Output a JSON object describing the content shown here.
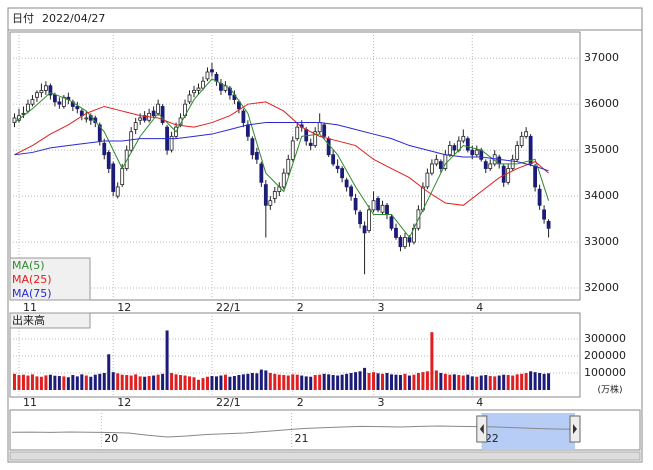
{
  "chart_data": {
    "type": "candlestick",
    "header": {
      "label": "日付",
      "date": "2022/04/27"
    },
    "xlim": [
      -1,
      126
    ],
    "ylim": [
      31740,
      37570
    ],
    "yticks": [
      32000,
      33000,
      34000,
      35000,
      36000,
      37000
    ],
    "grid": true,
    "xticks": [
      {
        "value": 1,
        "label": "11"
      },
      {
        "value": 22,
        "label": "12"
      },
      {
        "value": 44,
        "label": "22/1"
      },
      {
        "value": 62,
        "label": "2"
      },
      {
        "value": 80,
        "label": "3"
      },
      {
        "value": 102,
        "label": "4"
      }
    ],
    "up_color": "#ffffff",
    "down_color": "#1c1c78",
    "ohlc": [
      [
        35600,
        35800,
        35500,
        35700
      ],
      [
        35650,
        35900,
        35600,
        35750
      ],
      [
        35800,
        35950,
        35700,
        35800
      ],
      [
        35850,
        36100,
        35800,
        36000
      ],
      [
        36000,
        36200,
        35950,
        36100
      ],
      [
        36150,
        36300,
        36050,
        36250
      ],
      [
        36250,
        36450,
        36150,
        36300
      ],
      [
        36300,
        36500,
        36200,
        36400
      ],
      [
        36400,
        36450,
        36100,
        36200
      ],
      [
        36200,
        36250,
        35950,
        36050
      ],
      [
        36050,
        36150,
        35900,
        36000
      ],
      [
        35950,
        36200,
        35900,
        36150
      ],
      [
        36150,
        36250,
        36000,
        36100
      ],
      [
        36050,
        36100,
        35850,
        35950
      ],
      [
        35950,
        36050,
        35800,
        35900
      ],
      [
        35850,
        35900,
        35650,
        35750
      ],
      [
        35700,
        35850,
        35600,
        35700
      ],
      [
        35750,
        35800,
        35550,
        35650
      ],
      [
        35700,
        35750,
        35500,
        35600
      ],
      [
        35550,
        35600,
        35100,
        35200
      ],
      [
        35150,
        35250,
        34800,
        34900
      ],
      [
        34950,
        35000,
        34500,
        34600
      ],
      [
        34700,
        34750,
        34000,
        34100
      ],
      [
        34000,
        34300,
        33950,
        34200
      ],
      [
        34250,
        34700,
        34200,
        34600
      ],
      [
        34600,
        35100,
        34550,
        35000
      ],
      [
        35000,
        35500,
        34950,
        35400
      ],
      [
        35450,
        35700,
        35350,
        35600
      ],
      [
        35650,
        35800,
        35550,
        35700
      ],
      [
        35750,
        35850,
        35600,
        35650
      ],
      [
        35650,
        35900,
        35600,
        35800
      ],
      [
        35850,
        35950,
        35700,
        35750
      ],
      [
        35800,
        36100,
        35750,
        36000
      ],
      [
        35950,
        36000,
        35550,
        35600
      ],
      [
        35500,
        35550,
        34900,
        35000
      ],
      [
        35000,
        35400,
        34950,
        35300
      ],
      [
        35300,
        35600,
        35250,
        35500
      ],
      [
        35550,
        35800,
        35500,
        35700
      ],
      [
        35750,
        36100,
        35700,
        36000
      ],
      [
        36050,
        36300,
        36000,
        36200
      ],
      [
        36250,
        36400,
        36150,
        36300
      ],
      [
        36300,
        36450,
        36200,
        36350
      ],
      [
        36350,
        36600,
        36300,
        36500
      ],
      [
        36550,
        36800,
        36500,
        36700
      ],
      [
        36750,
        36900,
        36600,
        36700
      ],
      [
        36650,
        36700,
        36400,
        36500
      ],
      [
        36450,
        36550,
        36200,
        36300
      ],
      [
        36300,
        36500,
        36250,
        36400
      ],
      [
        36350,
        36400,
        36100,
        36200
      ],
      [
        36200,
        36300,
        36000,
        36100
      ],
      [
        36050,
        36100,
        35800,
        35900
      ],
      [
        35850,
        35900,
        35500,
        35600
      ],
      [
        35550,
        35650,
        35200,
        35300
      ],
      [
        35250,
        35300,
        34800,
        34900
      ],
      [
        34950,
        35050,
        34700,
        34800
      ],
      [
        34700,
        34750,
        34200,
        34300
      ],
      [
        34250,
        34350,
        33100,
        33800
      ],
      [
        33800,
        34000,
        33700,
        33900
      ],
      [
        33950,
        34200,
        33850,
        34100
      ],
      [
        34100,
        34300,
        34000,
        34200
      ],
      [
        34200,
        34600,
        34150,
        34500
      ],
      [
        34500,
        34900,
        34450,
        34800
      ],
      [
        34800,
        35300,
        34750,
        35200
      ],
      [
        35250,
        35600,
        35200,
        35500
      ],
      [
        35550,
        35650,
        35400,
        35500
      ],
      [
        35450,
        35500,
        35100,
        35200
      ],
      [
        35150,
        35250,
        35000,
        35100
      ],
      [
        35100,
        35500,
        35050,
        35400
      ],
      [
        35400,
        35800,
        35350,
        35600
      ],
      [
        35550,
        35600,
        35250,
        35300
      ],
      [
        35250,
        35300,
        34850,
        34900
      ],
      [
        34900,
        35000,
        34650,
        34700
      ],
      [
        34650,
        34800,
        34500,
        34600
      ],
      [
        34600,
        34650,
        34300,
        34400
      ],
      [
        34350,
        34400,
        34100,
        34200
      ],
      [
        34200,
        34250,
        33900,
        34000
      ],
      [
        33950,
        34050,
        33600,
        33700
      ],
      [
        33650,
        33700,
        33300,
        33400
      ],
      [
        33350,
        33450,
        32300,
        33200
      ],
      [
        33250,
        33800,
        33200,
        33700
      ],
      [
        33700,
        34100,
        33650,
        33900
      ],
      [
        33950,
        34000,
        33650,
        33700
      ],
      [
        33650,
        33900,
        33600,
        33800
      ],
      [
        33800,
        33850,
        33500,
        33600
      ],
      [
        33550,
        33600,
        33250,
        33300
      ],
      [
        33300,
        33400,
        33050,
        33100
      ],
      [
        33100,
        33150,
        32800,
        32900
      ],
      [
        32900,
        33200,
        32850,
        33100
      ],
      [
        33100,
        33150,
        32900,
        33000
      ],
      [
        33000,
        33400,
        32950,
        33300
      ],
      [
        33300,
        33800,
        33250,
        33700
      ],
      [
        33700,
        34300,
        33650,
        34200
      ],
      [
        34200,
        34600,
        34150,
        34500
      ],
      [
        34500,
        34800,
        34450,
        34700
      ],
      [
        34700,
        34900,
        34650,
        34800
      ],
      [
        34750,
        34800,
        34500,
        34600
      ],
      [
        34600,
        35000,
        34550,
        34900
      ],
      [
        34900,
        35200,
        34850,
        35100
      ],
      [
        35100,
        35150,
        34900,
        35000
      ],
      [
        35000,
        35300,
        34950,
        35200
      ],
      [
        35200,
        35450,
        35150,
        35300
      ],
      [
        35250,
        35300,
        34950,
        35000
      ],
      [
        35000,
        35100,
        34800,
        34900
      ],
      [
        34900,
        35100,
        34850,
        35000
      ],
      [
        35000,
        35050,
        34750,
        34800
      ],
      [
        34750,
        34800,
        34500,
        34600
      ],
      [
        34600,
        34800,
        34550,
        34700
      ],
      [
        34700,
        35000,
        34650,
        34900
      ],
      [
        34850,
        34900,
        34600,
        34700
      ],
      [
        34650,
        34700,
        34200,
        34300
      ],
      [
        34300,
        34700,
        34250,
        34600
      ],
      [
        34600,
        34900,
        34550,
        34800
      ],
      [
        34800,
        35200,
        34750,
        35100
      ],
      [
        35100,
        35400,
        35050,
        35300
      ],
      [
        35300,
        35500,
        35250,
        35400
      ],
      [
        35300,
        35350,
        34650,
        34700
      ],
      [
        34650,
        34700,
        34100,
        34200
      ],
      [
        34150,
        34250,
        33700,
        33800
      ],
      [
        33700,
        33800,
        33400,
        33500
      ],
      [
        33450,
        33500,
        33100,
        33300
      ]
    ],
    "ma_x": [
      0,
      4,
      8,
      12,
      16,
      20,
      24,
      28,
      32,
      36,
      40,
      44,
      48,
      52,
      56,
      60,
      64,
      68,
      72,
      76,
      80,
      84,
      88,
      92,
      96,
      100,
      104,
      108,
      112,
      116,
      119
    ],
    "series": [
      {
        "name": "MA(5)",
        "color": "#2e8b2e",
        "values": [
          35600,
          35900,
          36250,
          36100,
          35850,
          35400,
          34600,
          35300,
          35800,
          35400,
          36100,
          36550,
          36350,
          35800,
          34500,
          34100,
          35300,
          35350,
          34900,
          34200,
          33600,
          33600,
          33100,
          33900,
          34700,
          35100,
          35000,
          34700,
          34700,
          34800,
          33900
        ]
      },
      {
        "name": "MA(25)",
        "color": "#e02020",
        "values": [
          34900,
          35100,
          35350,
          35550,
          35800,
          35950,
          35850,
          35750,
          35700,
          35550,
          35500,
          35600,
          35750,
          36000,
          36050,
          35850,
          35500,
          35300,
          35200,
          35100,
          34800,
          34600,
          34400,
          34100,
          33850,
          33800,
          34100,
          34400,
          34600,
          34750,
          34500
        ]
      },
      {
        "name": "MA(75)",
        "color": "#2a2ad0",
        "values": [
          34900,
          34950,
          35050,
          35100,
          35150,
          35200,
          35200,
          35250,
          35250,
          35250,
          35300,
          35350,
          35450,
          35550,
          35600,
          35600,
          35600,
          35600,
          35550,
          35450,
          35350,
          35250,
          35100,
          35000,
          34900,
          34850,
          34850,
          34800,
          34750,
          34650,
          34550
        ]
      }
    ],
    "volume": {
      "label": "出来高",
      "unit": "(万株)",
      "ylim": [
        0,
        435000
      ],
      "yticks": [
        100000,
        200000,
        300000
      ],
      "up_color": "#e02020",
      "down_color": "#1c1c78",
      "values": [
        95000,
        88000,
        90000,
        85000,
        92000,
        80000,
        78000,
        86000,
        90000,
        84000,
        82000,
        80000,
        75000,
        88000,
        80000,
        92000,
        85000,
        78000,
        90000,
        95000,
        100000,
        210000,
        105000,
        98000,
        90000,
        88000,
        85000,
        92000,
        80000,
        78000,
        82000,
        85000,
        90000,
        95000,
        350000,
        100000,
        92000,
        88000,
        85000,
        80000,
        75000,
        60000,
        70000,
        78000,
        82000,
        80000,
        85000,
        90000,
        78000,
        82000,
        88000,
        92000,
        95000,
        100000,
        98000,
        120000,
        115000,
        100000,
        95000,
        90000,
        88000,
        85000,
        92000,
        90000,
        85000,
        80000,
        78000,
        88000,
        90000,
        95000,
        92000,
        88000,
        85000,
        90000,
        95000,
        100000,
        105000,
        110000,
        130000,
        100000,
        105000,
        98000,
        95000,
        100000,
        92000,
        90000,
        88000,
        95000,
        85000,
        90000,
        100000,
        105000,
        110000,
        340000,
        115000,
        100000,
        95000,
        90000,
        92000,
        88000,
        85000,
        90000,
        80000,
        78000,
        85000,
        88000,
        82000,
        80000,
        85000,
        90000,
        88000,
        85000,
        92000,
        95000,
        100000,
        110000,
        105000,
        100000,
        95000,
        98000
      ]
    },
    "navigator": {
      "ylim": [
        15000,
        40000
      ],
      "xlim": [
        0,
        29
      ],
      "values": [
        27000,
        27100,
        26900,
        27200,
        27000,
        26800,
        26500,
        25000,
        23800,
        24500,
        25500,
        26000,
        26500,
        27500,
        28500,
        29500,
        30000,
        30500,
        31000,
        30800,
        30500,
        31000,
        31200,
        31000,
        30800,
        30500,
        30000,
        29500,
        29200,
        29000
      ],
      "ticks": [
        {
          "value": 4.6,
          "label": "20"
        },
        {
          "value": 14.4,
          "label": "21"
        },
        {
          "value": 24.2,
          "label": "22"
        }
      ],
      "selection": [
        24.2,
        29
      ]
    }
  }
}
